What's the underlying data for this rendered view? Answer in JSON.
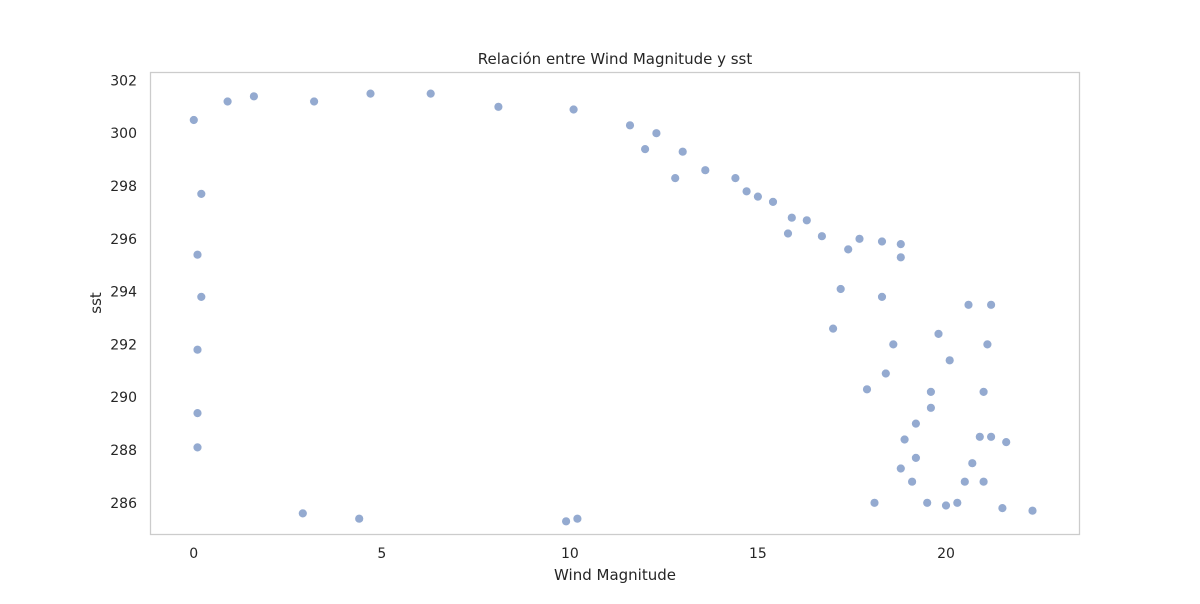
{
  "chart_data": {
    "type": "scatter",
    "title": "Relación entre Wind Magnitude y sst",
    "xlabel": "Wind Magnitude",
    "ylabel": "sst",
    "xlim": [
      -1.15,
      23.55
    ],
    "ylim": [
      284.8,
      302.3
    ],
    "xticks": [
      0,
      5,
      10,
      15,
      20
    ],
    "yticks": [
      286,
      288,
      290,
      292,
      294,
      296,
      298,
      300,
      302
    ],
    "grid": false,
    "legend": "none",
    "marker_color": "#4C72B0",
    "marker_edge_color": "#ffffff",
    "marker_alpha": 0.6,
    "frame_color": "#cccccc",
    "series": [
      {
        "points": [
          [
            0.0,
            300.5
          ],
          [
            22.3,
            285.7
          ],
          [
            21.6,
            288.3
          ],
          [
            21.2,
            293.5
          ],
          [
            21.1,
            292.0
          ],
          [
            20.6,
            293.5
          ],
          [
            20.1,
            291.4
          ],
          [
            19.8,
            292.4
          ],
          [
            19.6,
            290.2
          ],
          [
            21.0,
            290.2
          ],
          [
            20.7,
            287.5
          ],
          [
            21.2,
            288.5
          ],
          [
            20.9,
            288.5
          ],
          [
            19.5,
            286.0
          ],
          [
            20.5,
            286.8
          ],
          [
            21.0,
            286.8
          ],
          [
            18.8,
            295.8
          ],
          [
            18.8,
            295.3
          ],
          [
            18.3,
            295.9
          ],
          [
            18.3,
            293.8
          ],
          [
            17.7,
            296.0
          ],
          [
            17.4,
            295.6
          ],
          [
            17.2,
            294.1
          ],
          [
            17.0,
            292.6
          ],
          [
            16.7,
            296.1
          ],
          [
            16.3,
            296.7
          ],
          [
            15.9,
            296.8
          ],
          [
            15.8,
            296.2
          ],
          [
            15.4,
            297.4
          ],
          [
            15.0,
            297.6
          ],
          [
            14.7,
            297.8
          ],
          [
            14.4,
            298.3
          ],
          [
            13.6,
            298.6
          ],
          [
            13.0,
            299.3
          ],
          [
            12.3,
            300.0
          ],
          [
            11.6,
            300.3
          ],
          [
            10.1,
            300.9
          ],
          [
            12.0,
            299.4
          ],
          [
            12.8,
            298.3
          ],
          [
            19.6,
            289.6
          ],
          [
            19.2,
            289.0
          ],
          [
            18.9,
            288.4
          ],
          [
            18.8,
            287.3
          ],
          [
            19.2,
            287.7
          ],
          [
            18.6,
            292.0
          ],
          [
            18.4,
            290.9
          ],
          [
            19.1,
            286.8
          ],
          [
            18.1,
            286.0
          ],
          [
            17.9,
            290.3
          ],
          [
            20.3,
            286.0
          ],
          [
            6.3,
            301.5
          ],
          [
            4.7,
            301.5
          ],
          [
            1.6,
            301.4
          ],
          [
            3.2,
            301.2
          ],
          [
            9.9,
            285.3
          ],
          [
            10.2,
            285.4
          ],
          [
            4.4,
            285.4
          ],
          [
            2.9,
            285.6
          ],
          [
            21.5,
            285.8
          ],
          [
            20.0,
            285.9
          ],
          [
            0.9,
            301.2
          ],
          [
            8.1,
            301.0
          ],
          [
            0.1,
            295.4
          ],
          [
            0.1,
            291.8
          ],
          [
            0.1,
            289.4
          ],
          [
            0.1,
            288.1
          ],
          [
            0.2,
            293.8
          ],
          [
            0.2,
            297.7
          ]
        ]
      }
    ]
  }
}
